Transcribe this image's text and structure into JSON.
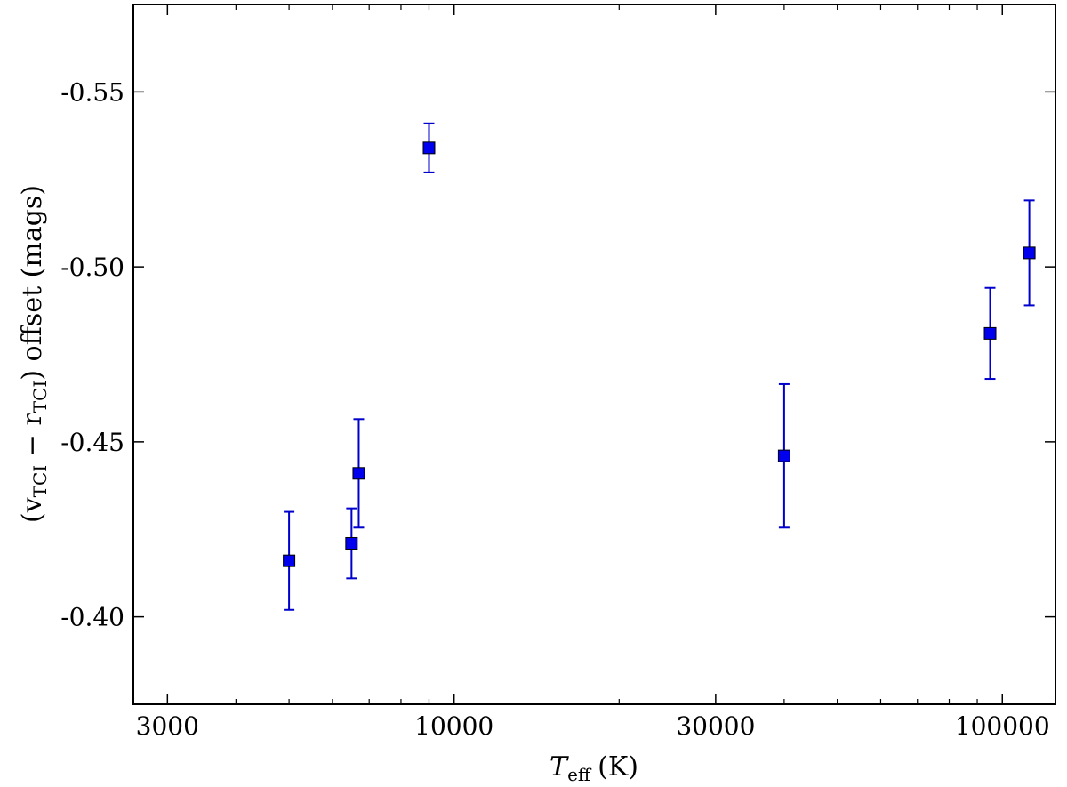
{
  "chart_data": {
    "type": "scatter",
    "xscale": "log",
    "xlim": [
      2600,
      125000
    ],
    "ylim": [
      -0.375,
      -0.575
    ],
    "yaxis_inverted": true,
    "grid": false,
    "legend": "none",
    "xlabel": {
      "main": "T",
      "sub": "eff",
      "unit": "(K)"
    },
    "ylabel": {
      "open": "(v",
      "sub1": "TCI",
      "minus": " − r",
      "sub2": "TCI",
      "close": ")",
      "rest": " offset (mags)"
    },
    "xticks": [
      {
        "value": 3000,
        "label": "3000"
      },
      {
        "value": 10000,
        "label": "10000"
      },
      {
        "value": 30000,
        "label": "30000"
      },
      {
        "value": 100000,
        "label": "100000"
      }
    ],
    "yticks": [
      {
        "value": -0.4,
        "label": "-0.40"
      },
      {
        "value": -0.45,
        "label": "-0.45"
      },
      {
        "value": -0.5,
        "label": "-0.50"
      },
      {
        "value": -0.55,
        "label": "-0.55"
      }
    ],
    "marker_color": "#0000ee",
    "errorbar_color": "#0000cc",
    "points": [
      {
        "x": 5000,
        "y": -0.416,
        "yerr_low": 0.014,
        "yerr_high": 0.014
      },
      {
        "x": 6500,
        "y": -0.421,
        "yerr_low": 0.01,
        "yerr_high": 0.01
      },
      {
        "x": 6700,
        "y": -0.441,
        "yerr_low": 0.0155,
        "yerr_high": 0.0155
      },
      {
        "x": 9000,
        "y": -0.534,
        "yerr_low": 0.007,
        "yerr_high": 0.007
      },
      {
        "x": 40000,
        "y": -0.446,
        "yerr_low": 0.0205,
        "yerr_high": 0.0205
      },
      {
        "x": 95000,
        "y": -0.481,
        "yerr_low": 0.013,
        "yerr_high": 0.013
      },
      {
        "x": 112000,
        "y": -0.504,
        "yerr_low": 0.015,
        "yerr_high": 0.015
      }
    ]
  }
}
